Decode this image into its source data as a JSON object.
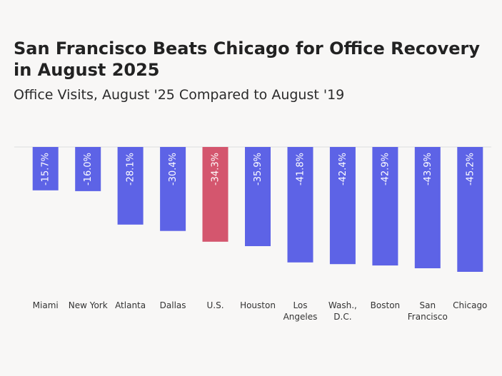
{
  "header": {
    "title": "San Francisco Beats Chicago for Office Recovery in August 2025",
    "subtitle": "Office Visits, August '25 Compared to August '19"
  },
  "colors": {
    "bar": "#5d63e6",
    "highlight": "#d4566e",
    "baseline": "#dddddd"
  },
  "chart_data": {
    "type": "bar",
    "title": "San Francisco Beats Chicago for Office Recovery in August 2025",
    "subtitle": "Office Visits, August '25 Compared to August '19",
    "xlabel": "",
    "ylabel": "",
    "ylim": [
      -45.2,
      0
    ],
    "grid": false,
    "legend": "none",
    "categories": [
      "Miami",
      "New York",
      "Atlanta",
      "Dallas",
      "U.S.",
      "Houston",
      "Los Angeles",
      "Wash., D.C.",
      "Boston",
      "San Francisco",
      "Chicago"
    ],
    "category_lines": [
      [
        "Miami"
      ],
      [
        "New York"
      ],
      [
        "Atlanta"
      ],
      [
        "Dallas"
      ],
      [
        "U.S."
      ],
      [
        "Houston"
      ],
      [
        "Los",
        "Angeles"
      ],
      [
        "Wash.,",
        "D.C."
      ],
      [
        "Boston"
      ],
      [
        "San",
        "Francisco"
      ],
      [
        "Chicago"
      ]
    ],
    "values": [
      -15.7,
      -16.0,
      -28.1,
      -30.4,
      -34.3,
      -35.9,
      -41.8,
      -42.4,
      -42.9,
      -43.9,
      -45.2
    ],
    "labels": [
      "-15.7%",
      "-16.0%",
      "-28.1%",
      "-30.4%",
      "-34.3%",
      "-35.9%",
      "-41.8%",
      "-42.4%",
      "-42.9%",
      "-43.9%",
      "-45.2%"
    ],
    "highlight": "U.S."
  }
}
